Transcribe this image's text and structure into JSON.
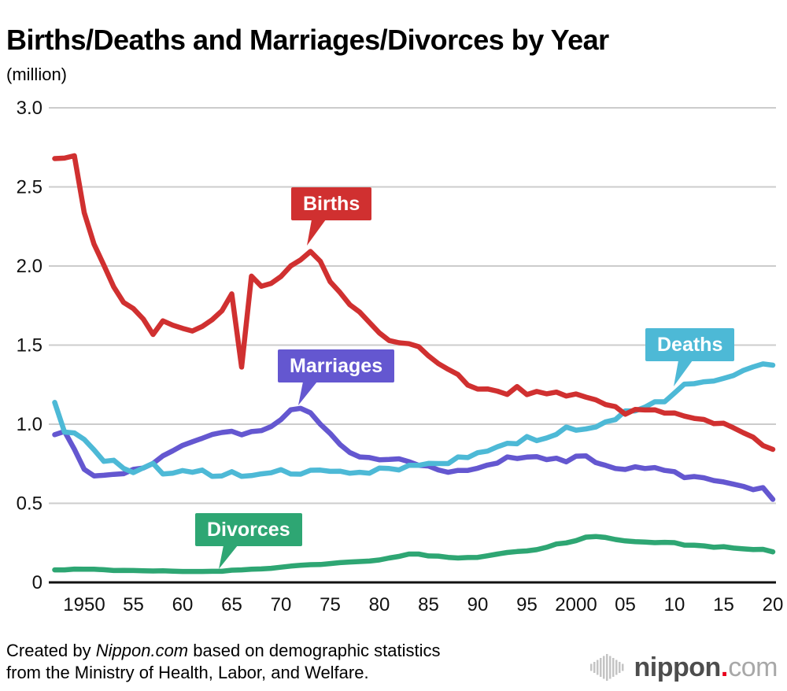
{
  "title": "Births/Deaths and Marriages/Divorces by Year",
  "unit_label": "(million)",
  "footer": {
    "line1_prefix": "Created by ",
    "line1_source": "Nippon.com",
    "line1_suffix": " based on demographic statistics",
    "line2": "from the Ministry of Health, Labor, and Welfare.",
    "logo": {
      "name": "nippon",
      "dot": ".",
      "tld": "com"
    }
  },
  "chart_data": {
    "type": "line",
    "title": "Births/Deaths and Marriages/Divorces by Year",
    "unit": "million",
    "grid": true,
    "ylim": [
      0,
      3.0
    ],
    "x_range": [
      1947,
      2020
    ],
    "x": [
      1947,
      1948,
      1949,
      1950,
      1951,
      1952,
      1953,
      1954,
      1955,
      1956,
      1957,
      1958,
      1959,
      1960,
      1961,
      1962,
      1963,
      1964,
      1965,
      1966,
      1967,
      1968,
      1969,
      1970,
      1971,
      1972,
      1973,
      1974,
      1975,
      1976,
      1977,
      1978,
      1979,
      1980,
      1981,
      1982,
      1983,
      1984,
      1985,
      1986,
      1987,
      1988,
      1989,
      1990,
      1991,
      1992,
      1993,
      1994,
      1995,
      1996,
      1997,
      1998,
      1999,
      2000,
      2001,
      2002,
      2003,
      2004,
      2005,
      2006,
      2007,
      2008,
      2009,
      2010,
      2011,
      2012,
      2013,
      2014,
      2015,
      2016,
      2017,
      2018,
      2019,
      2020
    ],
    "series": [
      {
        "name": "Divorces",
        "color": "#2ea673",
        "values": [
          0.079,
          0.079,
          0.084,
          0.083,
          0.083,
          0.08,
          0.075,
          0.076,
          0.075,
          0.073,
          0.072,
          0.073,
          0.071,
          0.069,
          0.069,
          0.069,
          0.07,
          0.07,
          0.077,
          0.079,
          0.083,
          0.085,
          0.089,
          0.096,
          0.103,
          0.108,
          0.112,
          0.113,
          0.119,
          0.125,
          0.129,
          0.132,
          0.135,
          0.142,
          0.154,
          0.164,
          0.179,
          0.179,
          0.167,
          0.166,
          0.158,
          0.154,
          0.157,
          0.158,
          0.168,
          0.179,
          0.189,
          0.195,
          0.199,
          0.207,
          0.222,
          0.243,
          0.25,
          0.264,
          0.286,
          0.29,
          0.284,
          0.271,
          0.262,
          0.257,
          0.255,
          0.251,
          0.253,
          0.251,
          0.236,
          0.235,
          0.231,
          0.222,
          0.226,
          0.217,
          0.212,
          0.208,
          0.209,
          0.193
        ]
      },
      {
        "name": "Marriages",
        "color": "#6457d0",
        "values": [
          0.934,
          0.954,
          0.842,
          0.715,
          0.673,
          0.677,
          0.683,
          0.687,
          0.715,
          0.723,
          0.752,
          0.8,
          0.832,
          0.866,
          0.889,
          0.911,
          0.935,
          0.948,
          0.955,
          0.933,
          0.953,
          0.959,
          0.985,
          1.029,
          1.091,
          1.1,
          1.072,
          1.0,
          0.942,
          0.872,
          0.821,
          0.793,
          0.789,
          0.775,
          0.777,
          0.781,
          0.763,
          0.74,
          0.736,
          0.711,
          0.696,
          0.708,
          0.708,
          0.722,
          0.742,
          0.754,
          0.793,
          0.783,
          0.792,
          0.795,
          0.776,
          0.785,
          0.762,
          0.798,
          0.8,
          0.757,
          0.74,
          0.72,
          0.714,
          0.731,
          0.72,
          0.726,
          0.708,
          0.7,
          0.662,
          0.669,
          0.661,
          0.644,
          0.635,
          0.621,
          0.607,
          0.586,
          0.599,
          0.525
        ]
      },
      {
        "name": "Deaths",
        "color": "#4db9d6",
        "values": [
          1.138,
          0.95,
          0.945,
          0.904,
          0.838,
          0.765,
          0.772,
          0.721,
          0.694,
          0.724,
          0.752,
          0.685,
          0.69,
          0.707,
          0.696,
          0.71,
          0.67,
          0.673,
          0.7,
          0.67,
          0.675,
          0.686,
          0.693,
          0.713,
          0.685,
          0.684,
          0.709,
          0.71,
          0.702,
          0.703,
          0.69,
          0.696,
          0.69,
          0.723,
          0.72,
          0.711,
          0.74,
          0.74,
          0.752,
          0.751,
          0.751,
          0.793,
          0.789,
          0.82,
          0.83,
          0.857,
          0.879,
          0.876,
          0.922,
          0.896,
          0.913,
          0.936,
          0.982,
          0.962,
          0.97,
          0.982,
          1.015,
          1.029,
          1.084,
          1.084,
          1.108,
          1.142,
          1.142,
          1.197,
          1.253,
          1.256,
          1.268,
          1.273,
          1.29,
          1.308,
          1.34,
          1.362,
          1.381,
          1.373
        ]
      },
      {
        "name": "Births",
        "color": "#d03030",
        "values": [
          2.679,
          2.682,
          2.697,
          2.338,
          2.138,
          2.005,
          1.868,
          1.77,
          1.731,
          1.665,
          1.567,
          1.653,
          1.626,
          1.606,
          1.589,
          1.618,
          1.66,
          1.717,
          1.824,
          1.361,
          1.936,
          1.872,
          1.89,
          1.934,
          2.001,
          2.039,
          2.092,
          2.03,
          1.901,
          1.833,
          1.755,
          1.709,
          1.643,
          1.577,
          1.529,
          1.515,
          1.509,
          1.49,
          1.432,
          1.383,
          1.347,
          1.314,
          1.247,
          1.222,
          1.223,
          1.209,
          1.188,
          1.238,
          1.187,
          1.207,
          1.192,
          1.203,
          1.178,
          1.191,
          1.171,
          1.154,
          1.124,
          1.111,
          1.063,
          1.093,
          1.09,
          1.091,
          1.07,
          1.071,
          1.051,
          1.037,
          1.03,
          1.004,
          1.006,
          0.977,
          0.946,
          0.918,
          0.865,
          0.841
        ]
      }
    ],
    "y_ticks": [
      {
        "v": 3.0,
        "label": "3.0"
      },
      {
        "v": 2.5,
        "label": "2.5"
      },
      {
        "v": 2.0,
        "label": "2.0"
      },
      {
        "v": 1.5,
        "label": "1.5"
      },
      {
        "v": 1.0,
        "label": "1.0"
      },
      {
        "v": 0.5,
        "label": "0.5"
      },
      {
        "v": 0,
        "label": "0"
      }
    ],
    "x_ticks": [
      {
        "x": 1950,
        "label": "1950"
      },
      {
        "x": 1955,
        "label": "55"
      },
      {
        "x": 1960,
        "label": "60"
      },
      {
        "x": 1965,
        "label": "65"
      },
      {
        "x": 1970,
        "label": "70"
      },
      {
        "x": 1975,
        "label": "75"
      },
      {
        "x": 1980,
        "label": "80"
      },
      {
        "x": 1985,
        "label": "85"
      },
      {
        "x": 1990,
        "label": "90"
      },
      {
        "x": 1995,
        "label": "95"
      },
      {
        "x": 2000,
        "label": "2000"
      },
      {
        "x": 2005,
        "label": "05"
      },
      {
        "x": 2010,
        "label": "10"
      },
      {
        "x": 2015,
        "label": "15"
      },
      {
        "x": 2020,
        "label": "20"
      }
    ],
    "annotations": [
      {
        "label": "Births",
        "color": "#d03030",
        "x": 1973,
        "y": 2.09
      },
      {
        "label": "Marriages",
        "color": "#6457d0",
        "x": 1972,
        "y": 1.1
      },
      {
        "label": "Deaths",
        "color": "#4db9d6",
        "x": 2010,
        "y": 1.2
      },
      {
        "label": "Divorces",
        "color": "#2ea673",
        "x": 1964,
        "y": 0.07
      }
    ]
  }
}
